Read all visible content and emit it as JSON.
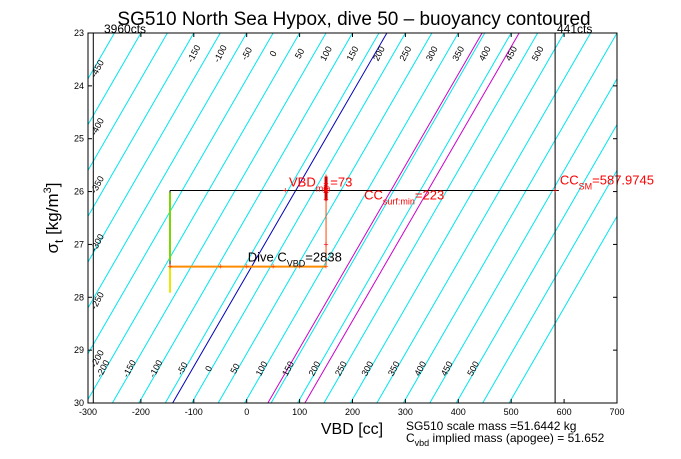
{
  "chart_data": {
    "type": "line",
    "title": "SG510 North Sea Hypox, dive 50 – buoyancy contoured",
    "xlabel": "VBD [cc]",
    "ylabel_main": "σ",
    "ylabel_sub": "t",
    "ylabel_units": " [kg/m",
    "ylabel_sup": "3",
    "ylabel_close": "]",
    "xlim": [
      -300,
      700
    ],
    "ylim": [
      23,
      30
    ],
    "y_reversed": true,
    "x_ticks": [
      -300,
      -200,
      -100,
      0,
      100,
      200,
      300,
      400,
      500,
      600,
      700
    ],
    "y_ticks": [
      23,
      24,
      25,
      26,
      27,
      28,
      29,
      30
    ],
    "grid": false,
    "buoyancy_contours": {
      "color": "#00e5ee",
      "slope_vbd_per_sigma": 57.7,
      "offsets_at_sigma23": [
        -300,
        -250,
        -200,
        -150,
        -100,
        -50,
        0,
        50,
        100,
        150,
        200,
        250,
        300,
        350,
        400,
        450,
        500,
        550,
        600,
        650,
        700,
        750,
        800,
        850,
        900
      ],
      "labels_top": [
        "-450",
        "-400",
        "-350",
        "-300",
        "-250",
        "-200",
        "-150",
        "-100",
        "-50",
        "0",
        "50",
        "100",
        "150",
        "200",
        "250",
        "300",
        "350",
        "400",
        "450",
        "500"
      ],
      "labels_top_vbd_at_sigma": 23.7,
      "labels_top_start_vbd": -285,
      "labels_top_step": 50,
      "labels_bottom": [
        "-200",
        "-150",
        "-100",
        "-50",
        "0",
        "50",
        "100",
        "150",
        "200",
        "250",
        "300",
        "350",
        "400",
        "450",
        "500"
      ],
      "labels_bottom_sigma": 29.3,
      "labels_bottom_start_vbd": -282,
      "labels_bottom_step": 50
    },
    "reference_lines": [
      {
        "color": "#0000bb",
        "vbd_at_30": -140,
        "vbd_at_23": 265
      },
      {
        "color": "#cc00cc",
        "vbd_at_30": 40,
        "vbd_at_23": 445
      },
      {
        "color": "#cc00cc",
        "vbd_at_30": 110,
        "vbd_at_23": 515
      }
    ],
    "vertical_lines": [
      {
        "color": "#000000",
        "vbd": -290
      },
      {
        "color": "#000000",
        "vbd": 583
      }
    ],
    "corner_labels": {
      "left": "3960cts",
      "right": "441cts"
    },
    "profile_box": {
      "top_sigma": 25.98,
      "bottom_sigma": 27.42,
      "left_vbd": -145,
      "right_vbd": 150,
      "top_right_extent_vbd": 590
    },
    "markers": {
      "orange_points": [
        [
          -145,
          27.42
        ],
        [
          -50,
          27.42
        ],
        [
          0,
          27.42
        ],
        [
          50,
          27.42
        ],
        [
          100,
          27.42
        ],
        [
          150,
          27.42
        ]
      ],
      "red_points": [
        [
          73,
          25.98
        ],
        [
          150,
          25.98
        ],
        [
          150,
          25.85
        ],
        [
          150,
          26.15
        ],
        [
          150,
          27.0
        ],
        [
          583,
          25.98
        ]
      ],
      "red_cross": [
        150,
        25.98
      ]
    },
    "annotations": [
      {
        "id": "vbd-min",
        "text": "VBD",
        "sub": "min",
        "value": "=73",
        "color": "#ff0000",
        "at": [
          80,
          25.9
        ]
      },
      {
        "id": "cc-surf",
        "text": "CC",
        "sub": "surf:min",
        "value": "=223",
        "color": "#ff0000",
        "at": [
          222,
          26.15
        ]
      },
      {
        "id": "cc-sm",
        "text": "CC",
        "sub": "SM",
        "value": "=587.9745",
        "color": "#ff0000",
        "at": [
          592,
          25.87
        ]
      },
      {
        "id": "dive-c",
        "text": "Dive C",
        "sub": "VBD",
        "value": "=2838",
        "color": "#000000",
        "at": [
          2,
          27.32
        ]
      }
    ],
    "footnotes": [
      {
        "text": "SG510 scale mass =51.6442 kg"
      },
      {
        "text": "C",
        "sub": "vbd",
        "rest": " implied mass (apogee) = 51.652"
      }
    ]
  }
}
